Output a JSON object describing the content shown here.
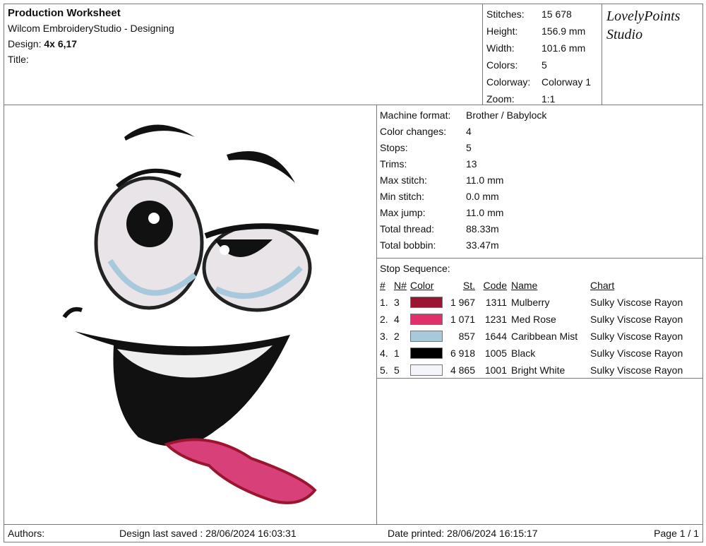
{
  "header": {
    "title": "Production Worksheet",
    "app": "Wilcom EmbroideryStudio - Designing",
    "design_label": "Design:",
    "design_value": "4x 6,17",
    "title_label": "Title:"
  },
  "stats": [
    {
      "k": "Stitches:",
      "v": "15 678"
    },
    {
      "k": "Height:",
      "v": "156.9 mm"
    },
    {
      "k": "Width:",
      "v": "101.6 mm"
    },
    {
      "k": "Colors:",
      "v": "5"
    },
    {
      "k": "Colorway:",
      "v": "Colorway 1"
    },
    {
      "k": "Zoom:",
      "v": "1:1"
    }
  ],
  "logo": {
    "line1": "LovelyPoints",
    "line2": "Studio"
  },
  "specs": [
    {
      "k": "Machine format:",
      "v": "Brother / Babylock"
    },
    {
      "k": "Color changes:",
      "v": "4"
    },
    {
      "k": "Stops:",
      "v": "5"
    },
    {
      "k": "Trims:",
      "v": "13"
    },
    {
      "k": "Max stitch:",
      "v": "11.0 mm"
    },
    {
      "k": "Min stitch:",
      "v": "0.0 mm"
    },
    {
      "k": "Max jump:",
      "v": "11.0 mm"
    },
    {
      "k": "Total thread:",
      "v": "88.33m"
    },
    {
      "k": "Total bobbin:",
      "v": "33.47m"
    }
  ],
  "stop_sequence": {
    "title": "Stop Sequence:",
    "headers": [
      "#",
      "N#",
      "Color",
      "St.",
      "Code",
      "Name",
      "Chart"
    ],
    "rows": [
      {
        "n": "1.",
        "nn": "3",
        "color": "#9b1530",
        "st": "1 967",
        "code": "1311",
        "name": "Mulberry",
        "chart": "Sulky Viscose Rayon"
      },
      {
        "n": "2.",
        "nn": "4",
        "color": "#e0306a",
        "st": "1 071",
        "code": "1231",
        "name": "Med Rose",
        "chart": "Sulky Viscose Rayon"
      },
      {
        "n": "3.",
        "nn": "2",
        "color": "#a8c8dc",
        "st": "857",
        "code": "1644",
        "name": "Caribbean Mist",
        "chart": "Sulky Viscose Rayon"
      },
      {
        "n": "4.",
        "nn": "1",
        "color": "#000000",
        "st": "6 918",
        "code": "1005",
        "name": "Black",
        "chart": "Sulky Viscose Rayon"
      },
      {
        "n": "5.",
        "nn": "5",
        "color": "#f4f4fb",
        "st": "4 865",
        "code": "1001",
        "name": "Bright White",
        "chart": "Sulky Viscose Rayon"
      }
    ]
  },
  "footer": {
    "authors": "Authors:",
    "saved": "Design last saved : 28/06/2024 16:03:31",
    "printed": "Date printed: 28/06/2024 16:15:17",
    "page": "Page 1 / 1"
  }
}
